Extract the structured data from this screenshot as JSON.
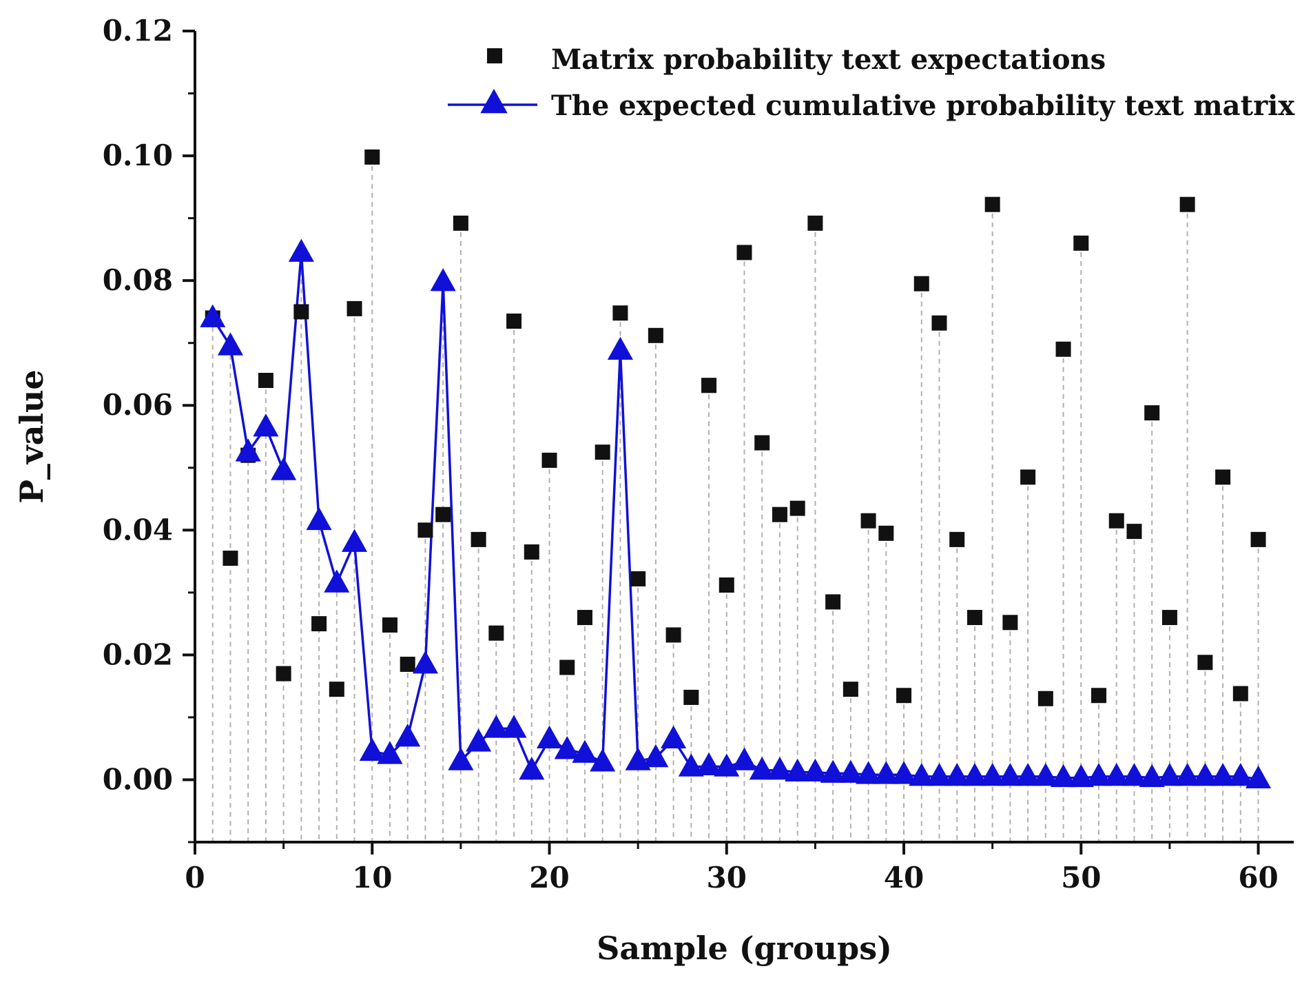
{
  "chart_data": {
    "type": "scatter+line",
    "title": "",
    "xlabel": "Sample (groups)",
    "ylabel": "P_value",
    "xlim": [
      0,
      62
    ],
    "ylim": [
      -0.01,
      0.12
    ],
    "x_ticks": [
      0,
      10,
      20,
      30,
      40,
      50,
      60
    ],
    "y_ticks": [
      0.0,
      0.02,
      0.04,
      0.06,
      0.08,
      0.1,
      0.12
    ],
    "x_tick_labels": [
      "0",
      "10",
      "20",
      "30",
      "40",
      "50",
      "60"
    ],
    "y_tick_labels": [
      "0.00",
      "0.02",
      "0.04",
      "0.06",
      "0.08",
      "0.10",
      "0.12"
    ],
    "grid": "vertical dashed drop lines at each sample",
    "legend_position": "top-right",
    "series": [
      {
        "name": "Matrix probability text expectations",
        "marker": "square",
        "color": "#111111",
        "x": [
          1,
          2,
          3,
          4,
          5,
          6,
          7,
          8,
          9,
          10,
          11,
          12,
          13,
          14,
          15,
          16,
          17,
          18,
          19,
          20,
          21,
          22,
          23,
          24,
          25,
          26,
          27,
          28,
          29,
          30,
          31,
          32,
          33,
          34,
          35,
          36,
          37,
          38,
          39,
          40,
          41,
          42,
          43,
          44,
          45,
          46,
          47,
          48,
          49,
          50,
          51,
          52,
          53,
          54,
          55,
          56,
          57,
          58,
          59,
          60
        ],
        "values": [
          0.074,
          0.0355,
          0.052,
          0.064,
          0.017,
          0.075,
          0.025,
          0.0145,
          0.0755,
          0.0998,
          0.0248,
          0.0185,
          0.04,
          0.0425,
          0.0892,
          0.0385,
          0.0235,
          0.0735,
          0.0365,
          0.0512,
          0.018,
          0.026,
          0.0525,
          0.0748,
          0.0322,
          0.0712,
          0.0232,
          0.0132,
          0.0632,
          0.0312,
          0.0845,
          0.054,
          0.0425,
          0.0435,
          0.0892,
          0.0285,
          0.0145,
          0.0415,
          0.0395,
          0.0135,
          0.0795,
          0.0732,
          0.0385,
          0.026,
          0.0922,
          0.0252,
          0.0485,
          0.013,
          0.069,
          0.086,
          0.0135,
          0.0415,
          0.0398,
          0.0588,
          0.026,
          0.0922,
          0.0188,
          0.0485,
          0.0138,
          0.0385
        ]
      },
      {
        "name": "The expected cumulative probability text matrix",
        "marker": "triangle",
        "line": "solid",
        "color": "#1010d8",
        "x": [
          1,
          2,
          3,
          4,
          5,
          6,
          7,
          8,
          9,
          10,
          11,
          12,
          13,
          14,
          15,
          16,
          17,
          18,
          19,
          20,
          21,
          22,
          23,
          24,
          25,
          26,
          27,
          28,
          29,
          30,
          31,
          32,
          33,
          34,
          35,
          36,
          37,
          38,
          39,
          40,
          41,
          42,
          43,
          44,
          45,
          46,
          47,
          48,
          49,
          50,
          51,
          52,
          53,
          54,
          55,
          56,
          57,
          58,
          59,
          60
        ],
        "values": [
          0.074,
          0.0695,
          0.0525,
          0.0565,
          0.0495,
          0.0845,
          0.0415,
          0.0315,
          0.038,
          0.0045,
          0.004,
          0.0068,
          0.0185,
          0.0798,
          0.003,
          0.006,
          0.0082,
          0.0082,
          0.0015,
          0.0065,
          0.0048,
          0.0042,
          0.0028,
          0.0688,
          0.003,
          0.0035,
          0.0065,
          0.002,
          0.0022,
          0.002,
          0.003,
          0.0015,
          0.0015,
          0.0012,
          0.0012,
          0.001,
          0.001,
          0.0008,
          0.0008,
          0.0008,
          0.0005,
          0.0005,
          0.0005,
          0.0005,
          0.0005,
          0.0005,
          0.0005,
          0.0005,
          0.0003,
          0.0003,
          0.0005,
          0.0005,
          0.0005,
          0.0003,
          0.0005,
          0.0005,
          0.0005,
          0.0005,
          0.0005,
          0.0001
        ]
      }
    ]
  },
  "colors": {
    "axis": "#111111",
    "drop_line": "#b0b0b0",
    "series1": "#111111",
    "series2": "#1010d8"
  }
}
